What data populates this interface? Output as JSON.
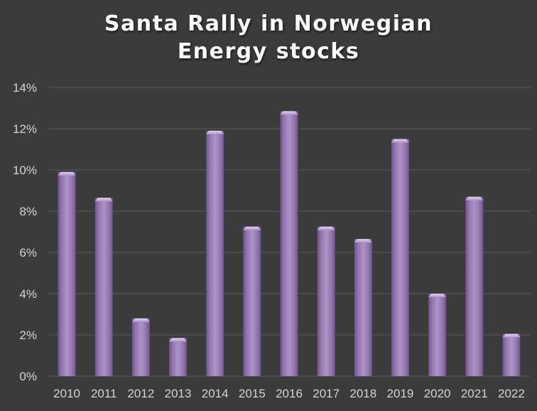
{
  "chart_data": {
    "type": "bar",
    "title_lines": [
      "Santa Rally in Norwegian",
      "Energy stocks"
    ],
    "xlabel": "",
    "ylabel": "",
    "categories": [
      "2010",
      "2011",
      "2012",
      "2013",
      "2014",
      "2015",
      "2016",
      "2017",
      "2018",
      "2019",
      "2020",
      "2021",
      "2022"
    ],
    "values": [
      9.9,
      8.65,
      2.8,
      1.85,
      11.9,
      7.25,
      12.85,
      7.25,
      6.65,
      11.5,
      4.0,
      8.7,
      2.05
    ],
    "ylim": [
      0,
      14
    ],
    "yticks": [
      0,
      2,
      4,
      6,
      8,
      10,
      12,
      14
    ],
    "ytick_labels": [
      "0%",
      "2%",
      "4%",
      "6%",
      "8%",
      "10%",
      "12%",
      "14%"
    ],
    "grid": true,
    "legend": "none",
    "colors": {
      "background": "#3b3b3b",
      "bar": "#8f74ac",
      "bar_light": "#ad93c8",
      "bar_dark": "#6a5286",
      "bar_top": "#e3d3f3",
      "grid": "#5a5a5a",
      "text": "#d4d4d4",
      "title": "#ffffff"
    }
  }
}
